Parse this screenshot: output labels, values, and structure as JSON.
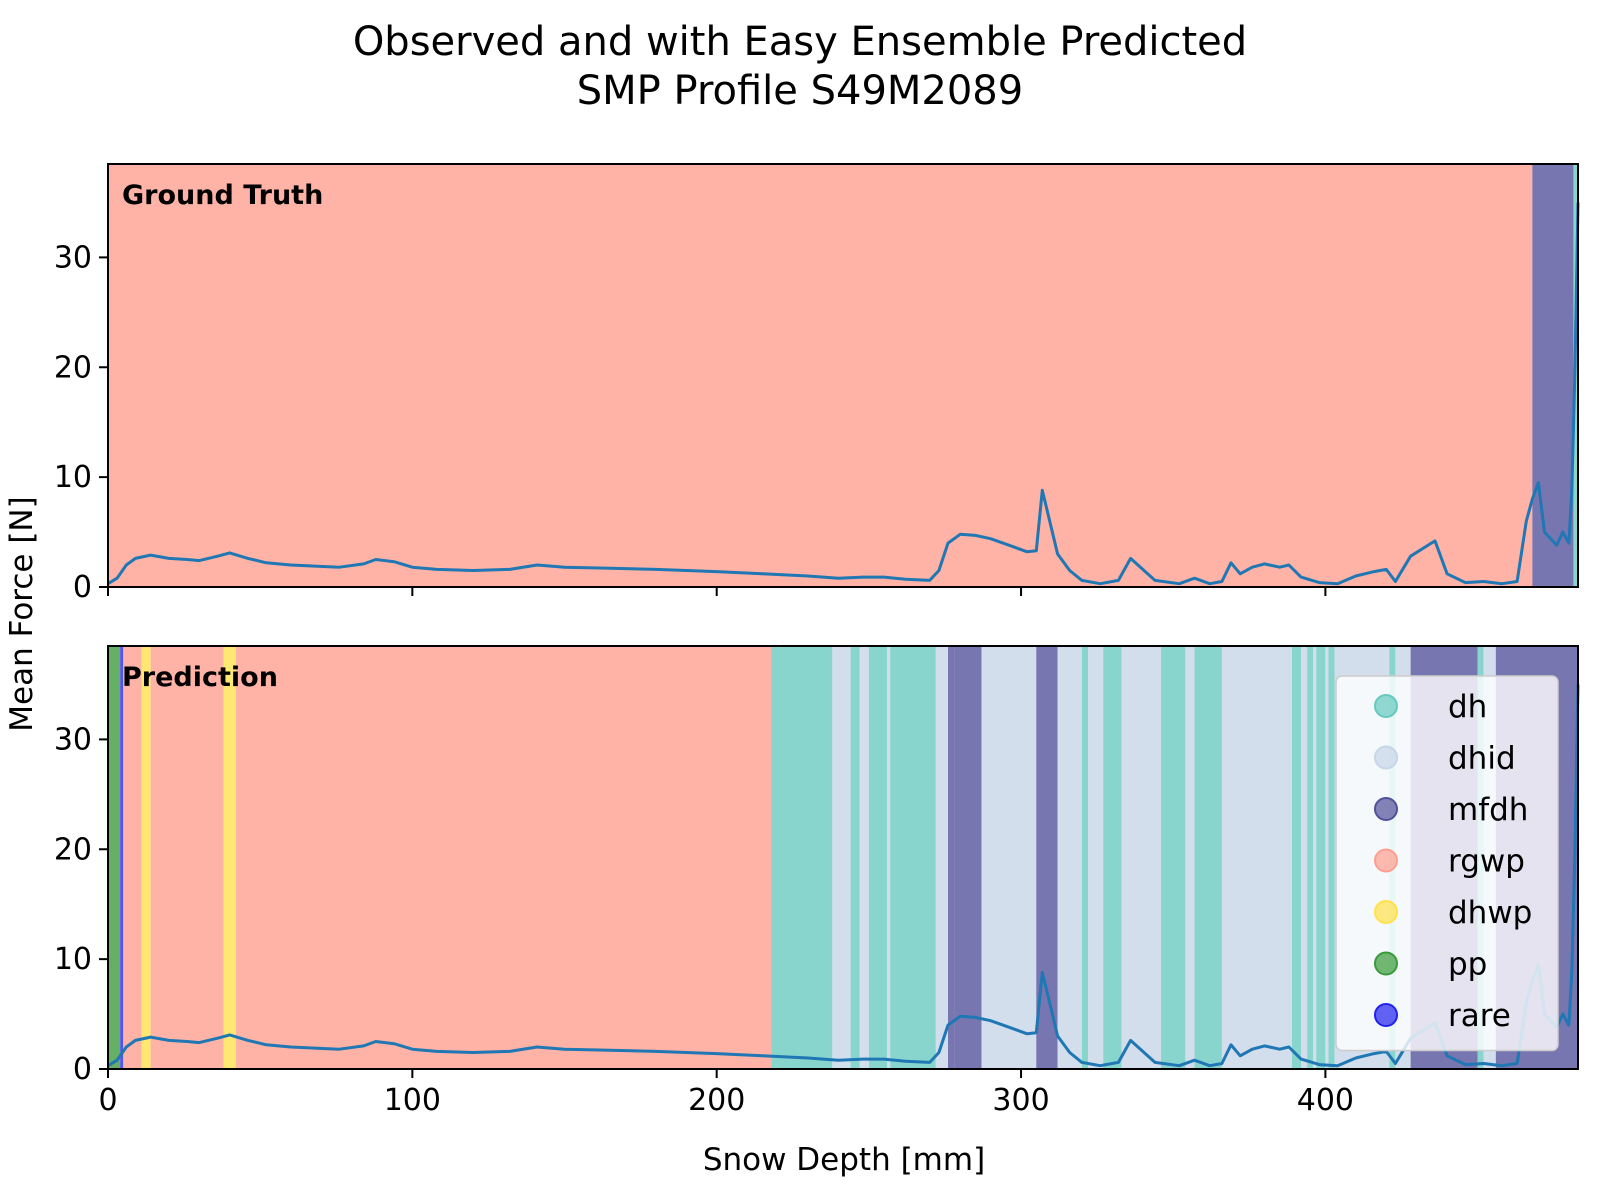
{
  "title": "Observed and with Easy Ensemble Predicted",
  "subtitle": "SMP Profile S49M2089",
  "chart_data": {
    "type": "line",
    "xlabel": "Snow Depth [mm]",
    "ylabel": "Mean Force [N]",
    "xlim": [
      0,
      483
    ],
    "ylim": [
      0,
      38.5
    ],
    "x_ticks": [
      "0",
      "100",
      "200",
      "300",
      "400"
    ],
    "y_ticks": [
      "0",
      "10",
      "20",
      "30"
    ],
    "class_colors": {
      "dh": "#66c9bf",
      "dhid": "#c6d5e8",
      "mfdh": "#52509a",
      "rgwp": "#ff9e8e",
      "dhwp": "#ffe14a",
      "pp": "#3a9a3a",
      "rare": "#2222ee"
    },
    "legend": {
      "location": "lower right of prediction panel",
      "entries": [
        "dh",
        "dhid",
        "mfdh",
        "rgwp",
        "dhwp",
        "pp",
        "rare"
      ]
    },
    "panels": [
      {
        "label": "Ground Truth",
        "segments": [
          {
            "from": 0,
            "to": 468,
            "class": "rgwp"
          },
          {
            "from": 468,
            "to": 481.5,
            "class": "mfdh"
          },
          {
            "from": 481.5,
            "to": 483,
            "class": "dh"
          }
        ]
      },
      {
        "label": "Prediction",
        "segments": [
          {
            "from": 0,
            "to": 4,
            "class": "pp"
          },
          {
            "from": 4,
            "to": 5,
            "class": "rare"
          },
          {
            "from": 5,
            "to": 11,
            "class": "rgwp"
          },
          {
            "from": 11,
            "to": 14,
            "class": "dhwp"
          },
          {
            "from": 14,
            "to": 38,
            "class": "rgwp"
          },
          {
            "from": 38,
            "to": 42,
            "class": "dhwp"
          },
          {
            "from": 42,
            "to": 218,
            "class": "rgwp"
          },
          {
            "from": 218,
            "to": 238,
            "class": "dh"
          },
          {
            "from": 238,
            "to": 244,
            "class": "dhid"
          },
          {
            "from": 244,
            "to": 247,
            "class": "dh"
          },
          {
            "from": 247,
            "to": 250,
            "class": "dhid"
          },
          {
            "from": 250,
            "to": 256,
            "class": "dh"
          },
          {
            "from": 256,
            "to": 257,
            "class": "dhid"
          },
          {
            "from": 257,
            "to": 272,
            "class": "dh"
          },
          {
            "from": 272,
            "to": 276,
            "class": "dhid"
          },
          {
            "from": 276,
            "to": 278,
            "class": "mfdh"
          },
          {
            "from": 278,
            "to": 287,
            "class": "mfdh"
          },
          {
            "from": 287,
            "to": 305,
            "class": "dhid"
          },
          {
            "from": 305,
            "to": 312,
            "class": "mfdh"
          },
          {
            "from": 312,
            "to": 320,
            "class": "dhid"
          },
          {
            "from": 320,
            "to": 322,
            "class": "dh"
          },
          {
            "from": 322,
            "to": 327,
            "class": "dhid"
          },
          {
            "from": 327,
            "to": 333,
            "class": "dh"
          },
          {
            "from": 333,
            "to": 346,
            "class": "dhid"
          },
          {
            "from": 346,
            "to": 354,
            "class": "dh"
          },
          {
            "from": 354,
            "to": 357,
            "class": "dhid"
          },
          {
            "from": 357,
            "to": 366,
            "class": "dh"
          },
          {
            "from": 366,
            "to": 389,
            "class": "dhid"
          },
          {
            "from": 389,
            "to": 392,
            "class": "dh"
          },
          {
            "from": 392,
            "to": 394,
            "class": "dhid"
          },
          {
            "from": 394,
            "to": 396,
            "class": "dh"
          },
          {
            "from": 396,
            "to": 397,
            "class": "dhid"
          },
          {
            "from": 397,
            "to": 400,
            "class": "dh"
          },
          {
            "from": 400,
            "to": 401,
            "class": "dhid"
          },
          {
            "from": 401,
            "to": 403,
            "class": "dh"
          },
          {
            "from": 403,
            "to": 421,
            "class": "dhid"
          },
          {
            "from": 421,
            "to": 423,
            "class": "dh"
          },
          {
            "from": 423,
            "to": 428,
            "class": "dhid"
          },
          {
            "from": 428,
            "to": 450,
            "class": "mfdh"
          },
          {
            "from": 450,
            "to": 452,
            "class": "dh"
          },
          {
            "from": 452,
            "to": 456,
            "class": "dhid"
          },
          {
            "from": 456,
            "to": 483,
            "class": "mfdh"
          }
        ]
      }
    ],
    "series": [
      {
        "line_color": "#1f77b4",
        "points": [
          [
            0,
            0.3
          ],
          [
            3,
            0.8
          ],
          [
            6,
            2.0
          ],
          [
            9,
            2.6
          ],
          [
            14,
            2.9
          ],
          [
            20,
            2.6
          ],
          [
            26,
            2.5
          ],
          [
            30,
            2.4
          ],
          [
            36,
            2.8
          ],
          [
            40,
            3.1
          ],
          [
            46,
            2.6
          ],
          [
            52,
            2.2
          ],
          [
            60,
            2.0
          ],
          [
            68,
            1.9
          ],
          [
            76,
            1.8
          ],
          [
            84,
            2.1
          ],
          [
            88,
            2.5
          ],
          [
            94,
            2.3
          ],
          [
            100,
            1.8
          ],
          [
            108,
            1.6
          ],
          [
            120,
            1.5
          ],
          [
            132,
            1.6
          ],
          [
            141,
            2.0
          ],
          [
            150,
            1.8
          ],
          [
            165,
            1.7
          ],
          [
            180,
            1.6
          ],
          [
            200,
            1.4
          ],
          [
            215,
            1.2
          ],
          [
            230,
            1.0
          ],
          [
            240,
            0.8
          ],
          [
            248,
            0.9
          ],
          [
            255,
            0.9
          ],
          [
            262,
            0.7
          ],
          [
            270,
            0.6
          ],
          [
            273,
            1.5
          ],
          [
            276,
            4.0
          ],
          [
            280,
            4.8
          ],
          [
            285,
            4.7
          ],
          [
            290,
            4.4
          ],
          [
            296,
            3.8
          ],
          [
            302,
            3.2
          ],
          [
            305,
            3.3
          ],
          [
            307,
            8.8
          ],
          [
            309,
            6.5
          ],
          [
            312,
            3.0
          ],
          [
            316,
            1.5
          ],
          [
            320,
            0.6
          ],
          [
            326,
            0.3
          ],
          [
            332,
            0.6
          ],
          [
            336,
            2.6
          ],
          [
            340,
            1.6
          ],
          [
            344,
            0.6
          ],
          [
            352,
            0.3
          ],
          [
            357,
            0.8
          ],
          [
            362,
            0.3
          ],
          [
            366,
            0.5
          ],
          [
            369,
            2.2
          ],
          [
            372,
            1.2
          ],
          [
            376,
            1.8
          ],
          [
            380,
            2.1
          ],
          [
            385,
            1.8
          ],
          [
            388,
            2.0
          ],
          [
            392,
            0.9
          ],
          [
            398,
            0.4
          ],
          [
            404,
            0.3
          ],
          [
            410,
            1.0
          ],
          [
            416,
            1.4
          ],
          [
            420,
            1.6
          ],
          [
            423,
            0.5
          ],
          [
            428,
            2.8
          ],
          [
            432,
            3.5
          ],
          [
            436,
            4.2
          ],
          [
            440,
            1.2
          ],
          [
            446,
            0.4
          ],
          [
            452,
            0.5
          ],
          [
            458,
            0.3
          ],
          [
            463,
            0.5
          ],
          [
            466,
            6.0
          ],
          [
            468,
            8.0
          ],
          [
            470,
            9.5
          ],
          [
            472,
            5.0
          ],
          [
            476,
            3.8
          ],
          [
            478,
            5.0
          ],
          [
            480,
            4.0
          ],
          [
            481,
            9.0
          ],
          [
            482,
            20.0
          ],
          [
            483,
            35.0
          ]
        ]
      }
    ]
  }
}
